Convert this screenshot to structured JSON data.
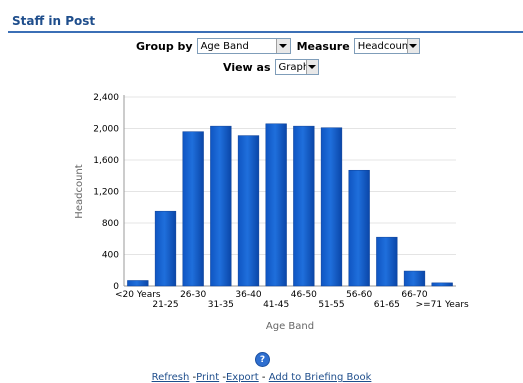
{
  "panel": {
    "title": "Staff in Post"
  },
  "prompts": {
    "group_by_label": "Group by",
    "group_by_value": "Age Band",
    "measure_label": "Measure",
    "measure_value": "Headcount",
    "view_as_label": "View as",
    "view_as_value": "Graph"
  },
  "chart_data": {
    "type": "bar",
    "categories": [
      "<20 Years",
      "21-25",
      "26-30",
      "31-35",
      "36-40",
      "41-45",
      "46-50",
      "51-55",
      "56-60",
      "61-65",
      "66-70",
      ">=71 Years"
    ],
    "values": [
      70,
      950,
      1960,
      2030,
      1910,
      2060,
      2030,
      2010,
      1470,
      620,
      190,
      40
    ],
    "yticks": [
      "0",
      "400",
      "800",
      "1,200",
      "1,600",
      "2,000",
      "2,400"
    ],
    "ylim": [
      0,
      2400
    ],
    "xlabel": "Age Band",
    "ylabel": "Headcount",
    "bar_color": "#1f6fdc",
    "grid": true
  },
  "footer": {
    "help_glyph": "?",
    "links": [
      "Refresh",
      "Print",
      "Export",
      "Add to Briefing Book"
    ]
  }
}
